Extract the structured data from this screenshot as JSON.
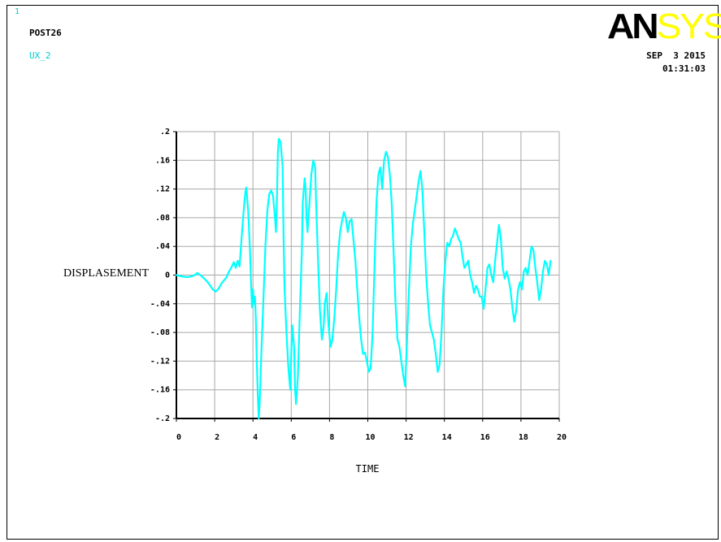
{
  "header": {
    "window_number": "1",
    "post_label": "POST26",
    "variable_label": "UX_2",
    "logo_part1": "AN",
    "logo_part2": "SYS",
    "date": "SEP  3 2015",
    "time": "01:31:03"
  },
  "colors": {
    "series": "#00ffff",
    "grid": "#a8a8a8",
    "axis": "#000000",
    "logo_dark": "#000000",
    "logo_light": "#ffff00"
  },
  "chart_data": {
    "type": "line",
    "xlabel": "TIME",
    "ylabel": "DISPLASEMENT",
    "xlim": [
      0,
      20
    ],
    "ylim": [
      -0.2,
      0.2
    ],
    "grid": true,
    "x_ticks": [
      "0",
      "2",
      "4",
      "6",
      "8",
      "10",
      "12",
      "14",
      "16",
      "18",
      "20"
    ],
    "y_ticks": [
      ".2",
      ".16",
      ".12",
      ".08",
      ".04",
      "0",
      "-.04",
      "-.08",
      "-.12",
      "-.16",
      "-.2"
    ],
    "series": [
      {
        "values": [
          [
            0,
            0
          ],
          [
            0.3,
            -0.002
          ],
          [
            0.6,
            -0.003
          ],
          [
            0.9,
            -0.001
          ],
          [
            1.1,
            0.003
          ],
          [
            1.3,
            -0.001
          ],
          [
            1.5,
            -0.006
          ],
          [
            1.7,
            -0.012
          ],
          [
            1.9,
            -0.02
          ],
          [
            2.05,
            -0.023
          ],
          [
            2.2,
            -0.019
          ],
          [
            2.4,
            -0.01
          ],
          [
            2.6,
            -0.004
          ],
          [
            2.75,
            0.005
          ],
          [
            2.9,
            0.012
          ],
          [
            3.0,
            0.018
          ],
          [
            3.1,
            0.01
          ],
          [
            3.2,
            0.02
          ],
          [
            3.3,
            0.012
          ],
          [
            3.4,
            0.05
          ],
          [
            3.5,
            0.085
          ],
          [
            3.6,
            0.115
          ],
          [
            3.65,
            0.122
          ],
          [
            3.75,
            0.09
          ],
          [
            3.85,
            0.03
          ],
          [
            3.9,
            -0.01
          ],
          [
            3.95,
            -0.045
          ],
          [
            4.0,
            -0.02
          ],
          [
            4.05,
            -0.04
          ],
          [
            4.1,
            -0.03
          ],
          [
            4.15,
            -0.06
          ],
          [
            4.2,
            -0.12
          ],
          [
            4.25,
            -0.165
          ],
          [
            4.3,
            -0.2
          ],
          [
            4.35,
            -0.18
          ],
          [
            4.45,
            -0.1
          ],
          [
            4.55,
            -0.03
          ],
          [
            4.65,
            0.04
          ],
          [
            4.75,
            0.09
          ],
          [
            4.85,
            0.113
          ],
          [
            4.95,
            0.118
          ],
          [
            5.05,
            0.11
          ],
          [
            5.15,
            0.08
          ],
          [
            5.2,
            0.06
          ],
          [
            5.25,
            0.1
          ],
          [
            5.3,
            0.17
          ],
          [
            5.35,
            0.19
          ],
          [
            5.45,
            0.185
          ],
          [
            5.55,
            0.15
          ],
          [
            5.6,
            0.05
          ],
          [
            5.65,
            -0.02
          ],
          [
            5.75,
            -0.08
          ],
          [
            5.85,
            -0.13
          ],
          [
            5.95,
            -0.16
          ],
          [
            6.0,
            -0.11
          ],
          [
            6.05,
            -0.07
          ],
          [
            6.15,
            -0.1
          ],
          [
            6.2,
            -0.16
          ],
          [
            6.25,
            -0.18
          ],
          [
            6.35,
            -0.14
          ],
          [
            6.45,
            -0.05
          ],
          [
            6.55,
            0.03
          ],
          [
            6.6,
            0.1
          ],
          [
            6.7,
            0.135
          ],
          [
            6.75,
            0.12
          ],
          [
            6.8,
            0.08
          ],
          [
            6.85,
            0.06
          ],
          [
            6.95,
            0.1
          ],
          [
            7.05,
            0.14
          ],
          [
            7.15,
            0.16
          ],
          [
            7.25,
            0.15
          ],
          [
            7.3,
            0.1
          ],
          [
            7.4,
            0.02
          ],
          [
            7.5,
            -0.05
          ],
          [
            7.6,
            -0.09
          ],
          [
            7.7,
            -0.07
          ],
          [
            7.75,
            -0.04
          ],
          [
            7.85,
            -0.025
          ],
          [
            7.95,
            -0.07
          ],
          [
            8.05,
            -0.1
          ],
          [
            8.15,
            -0.09
          ],
          [
            8.25,
            -0.06
          ],
          [
            8.35,
            -0.02
          ],
          [
            8.45,
            0.03
          ],
          [
            8.55,
            0.06
          ],
          [
            8.65,
            0.075
          ],
          [
            8.75,
            0.088
          ],
          [
            8.85,
            0.08
          ],
          [
            8.95,
            0.06
          ],
          [
            9.05,
            0.075
          ],
          [
            9.15,
            0.078
          ],
          [
            9.25,
            0.05
          ],
          [
            9.35,
            0.02
          ],
          [
            9.45,
            -0.02
          ],
          [
            9.55,
            -0.06
          ],
          [
            9.65,
            -0.09
          ],
          [
            9.75,
            -0.11
          ],
          [
            9.85,
            -0.108
          ],
          [
            9.95,
            -0.12
          ],
          [
            10.05,
            -0.135
          ],
          [
            10.15,
            -0.13
          ],
          [
            10.25,
            -0.08
          ],
          [
            10.35,
            0.01
          ],
          [
            10.45,
            0.1
          ],
          [
            10.55,
            0.14
          ],
          [
            10.65,
            0.15
          ],
          [
            10.75,
            0.12
          ],
          [
            10.85,
            0.16
          ],
          [
            10.95,
            0.172
          ],
          [
            11.05,
            0.165
          ],
          [
            11.15,
            0.14
          ],
          [
            11.25,
            0.1
          ],
          [
            11.35,
            0.03
          ],
          [
            11.45,
            -0.04
          ],
          [
            11.55,
            -0.09
          ],
          [
            11.65,
            -0.1
          ],
          [
            11.75,
            -0.12
          ],
          [
            11.85,
            -0.14
          ],
          [
            11.95,
            -0.155
          ],
          [
            12.05,
            -0.09
          ],
          [
            12.15,
            -0.02
          ],
          [
            12.25,
            0.04
          ],
          [
            12.35,
            0.07
          ],
          [
            12.45,
            0.09
          ],
          [
            12.55,
            0.11
          ],
          [
            12.65,
            0.13
          ],
          [
            12.75,
            0.145
          ],
          [
            12.85,
            0.12
          ],
          [
            12.95,
            0.06
          ],
          [
            13.05,
            0.0
          ],
          [
            13.15,
            -0.04
          ],
          [
            13.25,
            -0.07
          ],
          [
            13.35,
            -0.08
          ],
          [
            13.45,
            -0.09
          ],
          [
            13.55,
            -0.11
          ],
          [
            13.65,
            -0.135
          ],
          [
            13.75,
            -0.125
          ],
          [
            13.85,
            -0.08
          ],
          [
            13.95,
            -0.02
          ],
          [
            14.05,
            0.02
          ],
          [
            14.15,
            0.045
          ],
          [
            14.25,
            0.04
          ],
          [
            14.35,
            0.05
          ],
          [
            14.45,
            0.055
          ],
          [
            14.55,
            0.065
          ],
          [
            14.65,
            0.058
          ],
          [
            14.75,
            0.05
          ],
          [
            14.85,
            0.045
          ],
          [
            14.95,
            0.025
          ],
          [
            15.05,
            0.01
          ],
          [
            15.15,
            0.015
          ],
          [
            15.25,
            0.02
          ],
          [
            15.35,
            0.0
          ],
          [
            15.45,
            -0.01
          ],
          [
            15.55,
            -0.025
          ],
          [
            15.65,
            -0.015
          ],
          [
            15.75,
            -0.02
          ],
          [
            15.85,
            -0.03
          ],
          [
            15.95,
            -0.03
          ],
          [
            16.05,
            -0.047
          ],
          [
            16.15,
            -0.02
          ],
          [
            16.25,
            0.01
          ],
          [
            16.35,
            0.015
          ],
          [
            16.45,
            0.0
          ],
          [
            16.55,
            -0.01
          ],
          [
            16.65,
            0.02
          ],
          [
            16.75,
            0.045
          ],
          [
            16.85,
            0.07
          ],
          [
            16.95,
            0.05
          ],
          [
            17.05,
            0.01
          ],
          [
            17.15,
            -0.005
          ],
          [
            17.25,
            0.005
          ],
          [
            17.35,
            -0.005
          ],
          [
            17.45,
            -0.02
          ],
          [
            17.55,
            -0.045
          ],
          [
            17.65,
            -0.065
          ],
          [
            17.75,
            -0.05
          ],
          [
            17.85,
            -0.02
          ],
          [
            17.95,
            -0.01
          ],
          [
            18.05,
            -0.02
          ],
          [
            18.15,
            0.005
          ],
          [
            18.25,
            0.01
          ],
          [
            18.35,
            0.0
          ],
          [
            18.45,
            0.02
          ],
          [
            18.55,
            0.04
          ],
          [
            18.65,
            0.035
          ],
          [
            18.75,
            0.01
          ],
          [
            18.85,
            -0.01
          ],
          [
            18.95,
            -0.035
          ],
          [
            19.05,
            -0.02
          ],
          [
            19.15,
            0.005
          ],
          [
            19.25,
            0.02
          ],
          [
            19.35,
            0.015
          ],
          [
            19.45,
            0.0
          ],
          [
            19.55,
            0.02
          ]
        ]
      }
    ]
  }
}
